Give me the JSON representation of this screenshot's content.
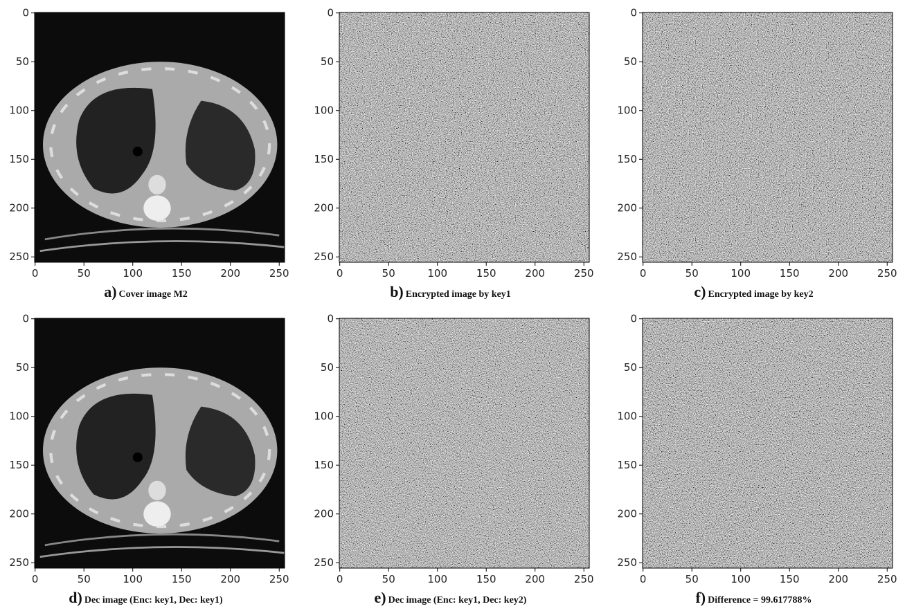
{
  "axes": {
    "lim": [
      -0.5,
      255.5
    ],
    "ticks": [
      0,
      50,
      100,
      150,
      200,
      250
    ]
  },
  "panels": [
    {
      "letter": "a)",
      "caption": "Cover image M2"
    },
    {
      "letter": "b)",
      "caption": "Encrypted image by key1"
    },
    {
      "letter": "c)",
      "caption": "Encrypted image by key2"
    },
    {
      "letter": "d)",
      "caption": "Dec image (Enc: key1, Dec: key1)"
    },
    {
      "letter": "e)",
      "caption": "Dec image (Enc: key1, Dec: key2)"
    },
    {
      "letter": "f)",
      "caption": "Difference = 99.617788%"
    }
  ]
}
